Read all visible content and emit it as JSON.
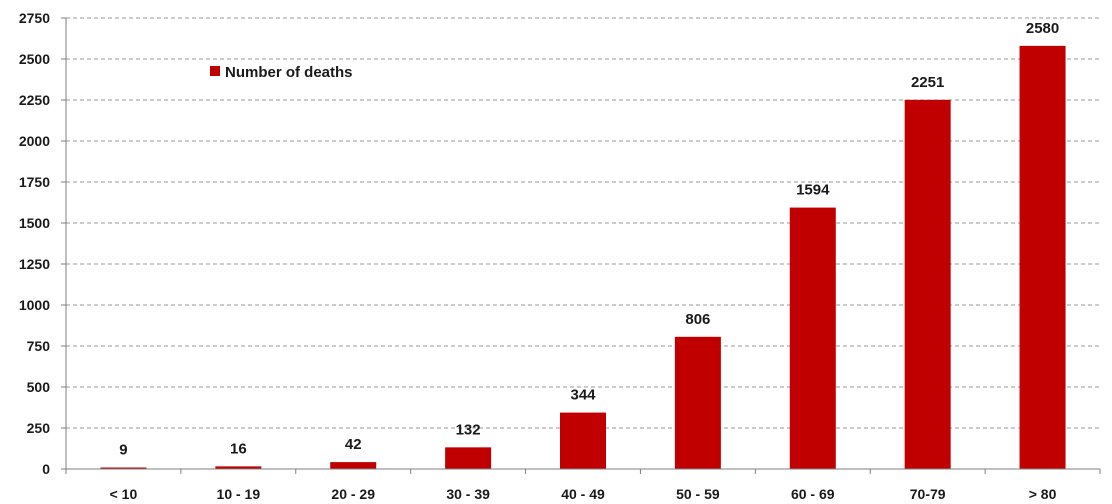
{
  "chart_data": {
    "type": "bar",
    "categories": [
      "< 10",
      "10 - 19",
      "20 - 29",
      "30 - 39",
      "40 - 49",
      "50 - 59",
      "60 - 69",
      "70-79",
      "> 80"
    ],
    "series": [
      {
        "name": "Number of deaths",
        "values": [
          9,
          16,
          42,
          132,
          344,
          806,
          1594,
          2251,
          2580
        ],
        "color": "#c00000"
      }
    ],
    "yticks": [
      "0",
      "250",
      "500",
      "750",
      "1000",
      "1250",
      "1500",
      "1750",
      "2000",
      "2250",
      "2500",
      "2750"
    ],
    "ylim": [
      0,
      2750
    ],
    "grid": true,
    "grid_style": "dashed",
    "legend_position": "top-left",
    "title": "",
    "xlabel": "",
    "ylabel": ""
  }
}
